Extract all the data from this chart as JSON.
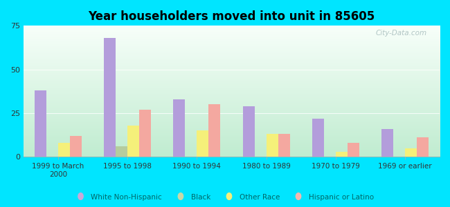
{
  "title": "Year householders moved into unit in 85605",
  "categories": [
    "1999 to March\n2000",
    "1995 to 1998",
    "1990 to 1994",
    "1980 to 1989",
    "1970 to 1979",
    "1969 or earlier"
  ],
  "series": {
    "White Non-Hispanic": [
      38,
      68,
      33,
      29,
      22,
      16
    ],
    "Black": [
      0,
      6,
      0,
      0,
      0,
      0
    ],
    "Other Race": [
      8,
      18,
      15,
      13,
      3,
      5
    ],
    "Hispanic or Latino": [
      12,
      27,
      30,
      13,
      8,
      11
    ]
  },
  "colors": {
    "White Non-Hispanic": "#b39ddb",
    "Black": "#b5cc9e",
    "Other Race": "#f5f07a",
    "Hispanic or Latino": "#f4a8a0"
  },
  "legend_colors": {
    "White Non-Hispanic": "#c9a8d8",
    "Black": "#c8d8a8",
    "Other Race": "#f5f07a",
    "Hispanic or Latino": "#f4b8b0"
  },
  "ylim": [
    0,
    75
  ],
  "yticks": [
    0,
    25,
    50,
    75
  ],
  "bg_color": "#00e5ff",
  "watermark": "City-Data.com",
  "bar_width": 0.17,
  "grad_top": "#f8fffa",
  "grad_bottom": "#c0ecd0"
}
